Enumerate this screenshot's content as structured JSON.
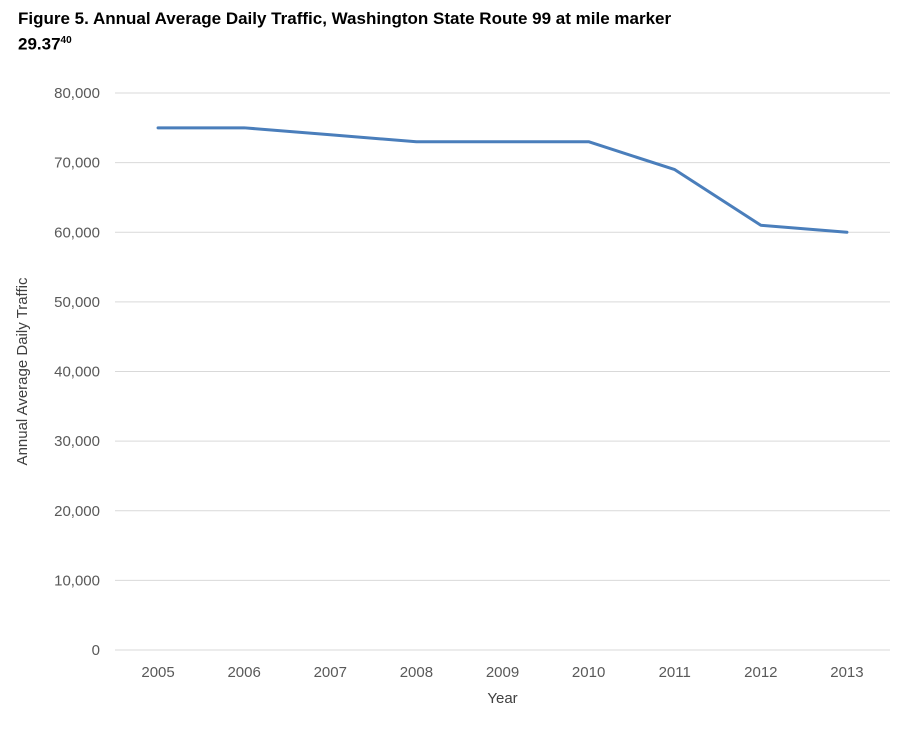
{
  "title": {
    "line1": "Figure 5. Annual Average Daily Traffic, Washington State Route 99 at mile marker",
    "line2": "29.37",
    "superscript": "40"
  },
  "chart_data": {
    "type": "line",
    "categories": [
      "2005",
      "2006",
      "2007",
      "2008",
      "2009",
      "2010",
      "2011",
      "2012",
      "2013"
    ],
    "series": [
      {
        "name": "Annual Average Daily Traffic",
        "values": [
          75000,
          75000,
          74000,
          73000,
          73000,
          73000,
          69000,
          61000,
          60000
        ]
      }
    ],
    "xlabel": "Year",
    "ylabel": "Annual Average Daily Traffic",
    "ylim": [
      0,
      80000
    ],
    "ytick_interval": 10000,
    "ytick_labels": [
      "0",
      "10,000",
      "20,000",
      "30,000",
      "40,000",
      "50,000",
      "60,000",
      "70,000",
      "80,000"
    ],
    "grid": true,
    "legend": "none",
    "colors": {
      "line": "#4a7ebb",
      "gridline": "#d9d9d9",
      "tick_label": "#595959",
      "axis_title": "#404040"
    }
  }
}
